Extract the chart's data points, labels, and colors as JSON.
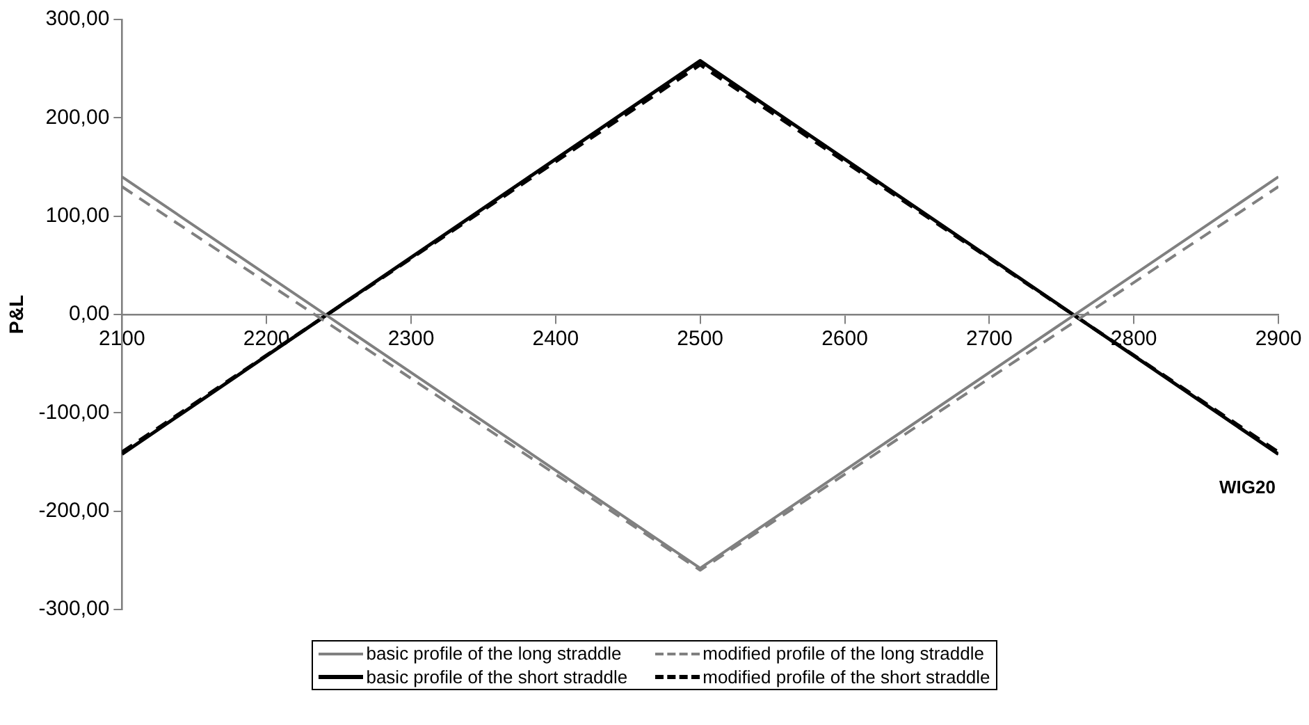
{
  "chart_data": {
    "type": "line",
    "xlabel": "WIG20",
    "ylabel": "P&L",
    "x": [
      2100,
      2500,
      2900
    ],
    "xlim": [
      2100,
      2900
    ],
    "xticks": [
      2100,
      2200,
      2300,
      2400,
      2500,
      2600,
      2700,
      2800,
      2900
    ],
    "ylim": [
      -300,
      300
    ],
    "yticks": [
      {
        "value": -300,
        "label": "-300,00"
      },
      {
        "value": -200,
        "label": "-200,00"
      },
      {
        "value": -100,
        "label": "-100,00"
      },
      {
        "value": 0,
        "label": "0,00"
      },
      {
        "value": 100,
        "label": "100,00"
      },
      {
        "value": 200,
        "label": "200,00"
      },
      {
        "value": 300,
        "label": "300,00"
      }
    ],
    "grid": false,
    "legend": "bottom",
    "marker": "none",
    "series": [
      {
        "name": "basic profile of the long straddle",
        "color": "#808080",
        "values": [
          140,
          -258,
          140
        ],
        "line_style": "solid"
      },
      {
        "name": "modified profile of the long straddle",
        "color": "#808080",
        "values": [
          130,
          -260,
          130
        ],
        "line_style": "dashed"
      },
      {
        "name": "basic profile of the short straddle",
        "color": "#000000",
        "values": [
          -142,
          258,
          -142
        ],
        "line_style": "solid"
      },
      {
        "name": "modified profile of the short straddle",
        "color": "#000000",
        "values": [
          -140,
          254,
          -140
        ],
        "line_style": "dashed"
      }
    ]
  }
}
